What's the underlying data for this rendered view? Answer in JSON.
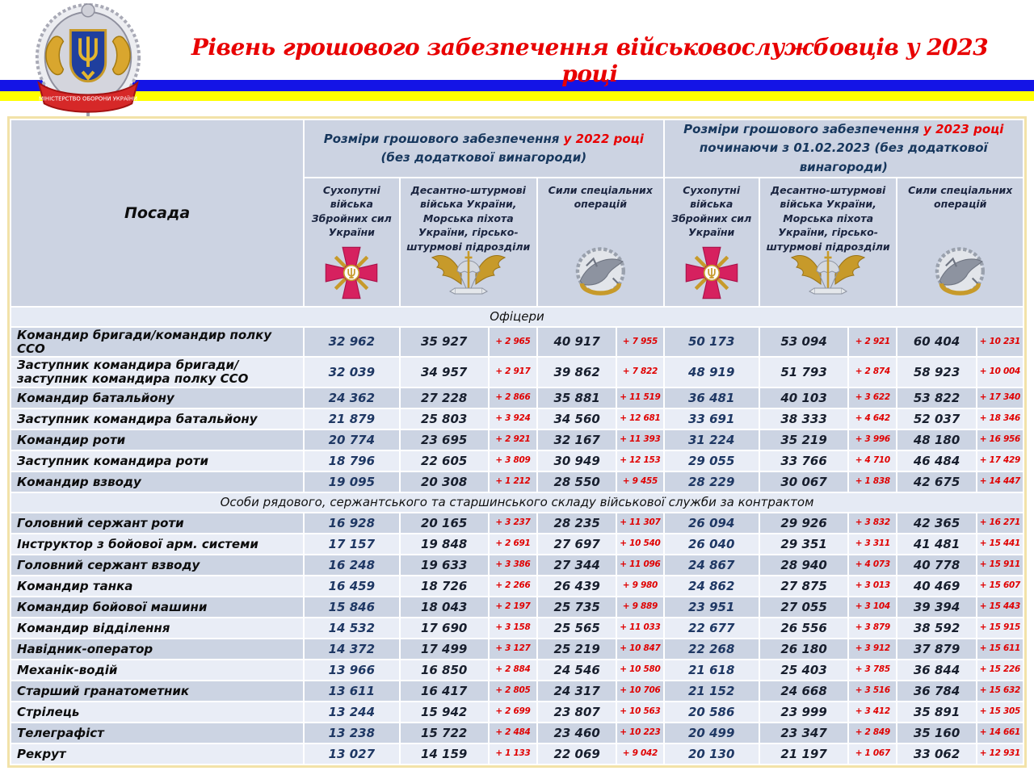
{
  "header": {
    "title": "Рівень грошового забезпечення військовослужбовців у 2023 році",
    "emblem_ribbon_text": "МІНІСТЕРСТВО ОБОРОНИ УКРАЇНИ",
    "colors": {
      "title_red": "#e80000",
      "flag_blue": "#1414e6",
      "flag_yellow": "#ffff00"
    }
  },
  "table": {
    "position_header": "Посада",
    "groups": [
      {
        "line1_main": "Розміри грошового забезпечення",
        "line1_accent": "у 2022 році",
        "line2": "(без додаткової винагороди)"
      },
      {
        "line1_main": "Розміри грошового забезпечення",
        "line1_accent": "у 2023 році",
        "line2": "починаючи з 01.02.2023 (без додаткової винагороди)"
      }
    ],
    "branches": [
      {
        "label": "Сухопутні війська Збройних сил України",
        "icon": "ground-forces-cross-icon"
      },
      {
        "label": "Десантно-штурмові війська України, Морська піхота України, гірсько-штурмові підрозділи",
        "icon": "air-assault-wings-icon"
      },
      {
        "label": "Сили спеціальних операцій",
        "icon": "special-operations-badge-icon"
      }
    ],
    "colors": {
      "row_dark": "#ccd4e3",
      "row_light": "#e9edf6",
      "header_bg": "#ccd3e2",
      "value_navy": "#1f3864",
      "value_black": "#181f2e",
      "delta_red": "#e00000"
    },
    "sections": [
      {
        "title": "Офіцери",
        "rows": [
          [
            "Командир бригади/командир полку ССО",
            "32 962",
            "35 927",
            "+ 2 965",
            "40 917",
            "+ 7 955",
            "50 173",
            "53 094",
            "+ 2 921",
            "60 404",
            "+ 10 231"
          ],
          [
            "Заступник командира бригади/ заступник командира полку ССО",
            "32 039",
            "34 957",
            "+ 2 917",
            "39 862",
            "+ 7 822",
            "48 919",
            "51 793",
            "+ 2 874",
            "58 923",
            "+ 10 004"
          ],
          [
            "Командир батальйону",
            "24 362",
            "27 228",
            "+ 2 866",
            "35 881",
            "+ 11 519",
            "36 481",
            "40 103",
            "+ 3 622",
            "53 822",
            "+ 17 340"
          ],
          [
            "Заступник командира батальйону",
            "21 879",
            "25 803",
            "+ 3 924",
            "34 560",
            "+ 12 681",
            "33 691",
            "38 333",
            "+ 4 642",
            "52 037",
            "+ 18 346"
          ],
          [
            "Командир роти",
            "20 774",
            "23 695",
            "+ 2 921",
            "32 167",
            "+ 11 393",
            "31 224",
            "35 219",
            "+ 3 996",
            "48 180",
            "+ 16 956"
          ],
          [
            "Заступник командира роти",
            "18 796",
            "22 605",
            "+ 3 809",
            "30 949",
            "+ 12 153",
            "29 055",
            "33 766",
            "+ 4 710",
            "46 484",
            "+ 17 429"
          ],
          [
            "Командир взводу",
            "19 095",
            "20 308",
            "+ 1 212",
            "28 550",
            "+ 9 455",
            "28 229",
            "30 067",
            "+ 1 838",
            "42 675",
            "+ 14 447"
          ]
        ]
      },
      {
        "title": "Особи рядового, сержантського та старшинського складу військової служби за контрактом",
        "rows": [
          [
            "Головний сержант роти",
            "16 928",
            "20 165",
            "+ 3 237",
            "28 235",
            "+ 11 307",
            "26 094",
            "29 926",
            "+ 3 832",
            "42 365",
            "+ 16 271"
          ],
          [
            "Інструктор з бойової арм. системи",
            "17 157",
            "19 848",
            "+ 2 691",
            "27 697",
            "+ 10 540",
            "26 040",
            "29 351",
            "+ 3 311",
            "41 481",
            "+ 15 441"
          ],
          [
            "Головний сержант взводу",
            "16 248",
            "19 633",
            "+ 3 386",
            "27 344",
            "+ 11 096",
            "24 867",
            "28 940",
            "+ 4 073",
            "40 778",
            "+ 15 911"
          ],
          [
            "Командир танка",
            "16 459",
            "18 726",
            "+ 2 266",
            "26 439",
            "+ 9 980",
            "24 862",
            "27 875",
            "+ 3 013",
            "40 469",
            "+ 15 607"
          ],
          [
            "Командир бойової машини",
            "15 846",
            "18 043",
            "+ 2 197",
            "25 735",
            "+ 9 889",
            "23 951",
            "27 055",
            "+ 3 104",
            "39 394",
            "+ 15 443"
          ],
          [
            "Командир відділення",
            "14 532",
            "17 690",
            "+ 3 158",
            "25 565",
            "+ 11 033",
            "22 677",
            "26 556",
            "+ 3 879",
            "38 592",
            "+ 15 915"
          ],
          [
            "Навідник-оператор",
            "14 372",
            "17 499",
            "+ 3 127",
            "25 219",
            "+ 10 847",
            "22 268",
            "26 180",
            "+ 3 912",
            "37 879",
            "+ 15 611"
          ],
          [
            "Механік-водій",
            "13 966",
            "16 850",
            "+ 2 884",
            "24 546",
            "+ 10 580",
            "21 618",
            "25 403",
            "+ 3 785",
            "36 844",
            "+ 15 226"
          ],
          [
            "Старший гранатометник",
            "13 611",
            "16 417",
            "+ 2 805",
            "24 317",
            "+ 10 706",
            "21 152",
            "24 668",
            "+ 3 516",
            "36 784",
            "+ 15 632"
          ],
          [
            "Стрілець",
            "13 244",
            "15 942",
            "+ 2 699",
            "23 807",
            "+ 10 563",
            "20 586",
            "23 999",
            "+ 3 412",
            "35 891",
            "+ 15 305"
          ],
          [
            "Телеграфіст",
            "13 238",
            "15 722",
            "+ 2 484",
            "23 460",
            "+ 10 223",
            "20 499",
            "23 347",
            "+ 2 849",
            "35 160",
            "+ 14 661"
          ],
          [
            "Рекрут",
            "13 027",
            "14 159",
            "+ 1 133",
            "22 069",
            "+ 9 042",
            "20 130",
            "21 197",
            "+ 1 067",
            "33 062",
            "+ 12 931"
          ]
        ]
      }
    ]
  }
}
